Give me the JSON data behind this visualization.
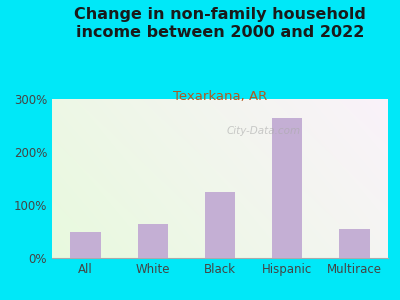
{
  "title": "Change in non-family household\nincome between 2000 and 2022",
  "subtitle": "Texarkana, AR",
  "categories": [
    "All",
    "White",
    "Black",
    "Hispanic",
    "Multirace"
  ],
  "values": [
    50,
    65,
    125,
    265,
    55
  ],
  "bar_color": "#c4afd4",
  "title_fontsize": 11.5,
  "subtitle_fontsize": 9.5,
  "subtitle_color": "#b05a20",
  "title_color": "#1a1a1a",
  "background_outer": "#00e8f8",
  "ylim": [
    0,
    300
  ],
  "yticks": [
    0,
    100,
    200,
    300
  ],
  "ytick_labels": [
    "0%",
    "100%",
    "200%",
    "300%"
  ],
  "watermark": "City-Data.com"
}
